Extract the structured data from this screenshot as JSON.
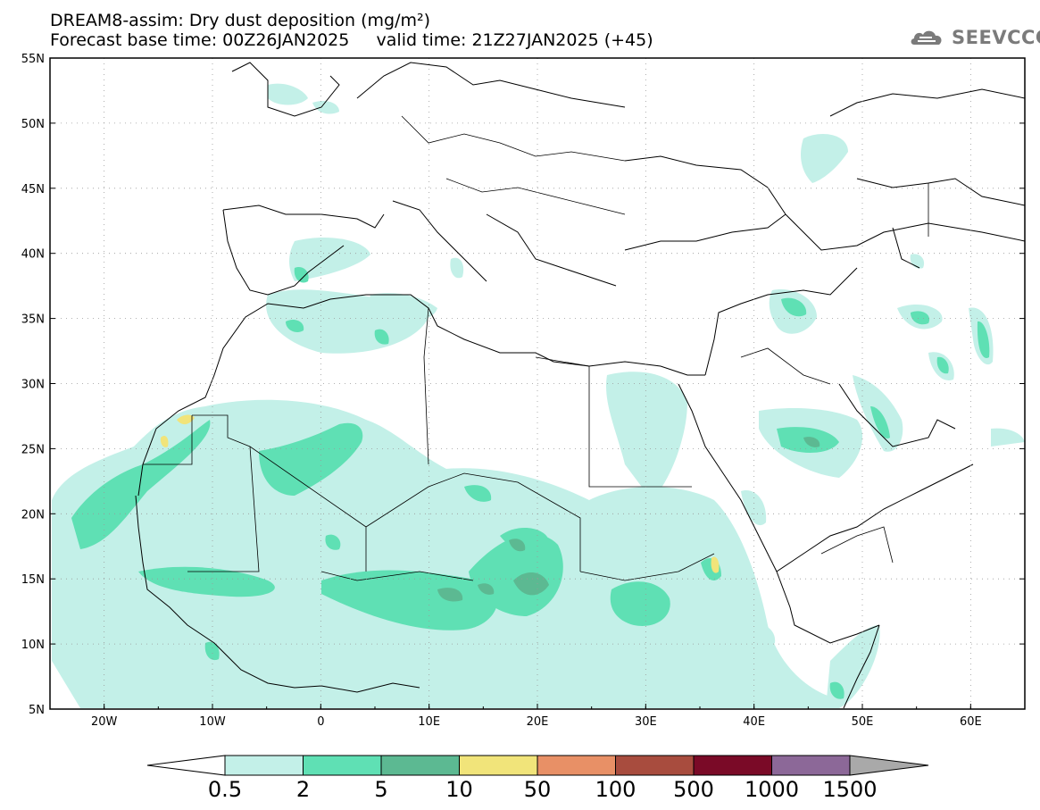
{
  "title": {
    "line1": "DREAM8-assim: Dry dust deposition (mg/m²)",
    "line2": "Forecast base time: 00Z26JAN2025     valid time: 21Z27JAN2025 (+45)"
  },
  "logo": {
    "text": "SEEVCCC",
    "icon": "cloud-icon"
  },
  "map": {
    "lon_range": [
      -25,
      65
    ],
    "lat_range": [
      5,
      55
    ],
    "lon_ticks": [
      {
        "value": -20,
        "label": "20W"
      },
      {
        "value": -10,
        "label": "10W"
      },
      {
        "value": 0,
        "label": "0"
      },
      {
        "value": 10,
        "label": "10E"
      },
      {
        "value": 20,
        "label": "20E"
      },
      {
        "value": 30,
        "label": "30E"
      },
      {
        "value": 40,
        "label": "40E"
      },
      {
        "value": 50,
        "label": "50E"
      },
      {
        "value": 60,
        "label": "60E"
      }
    ],
    "lat_ticks": [
      {
        "value": 55,
        "label": "55N"
      },
      {
        "value": 50,
        "label": "50N"
      },
      {
        "value": 45,
        "label": "45N"
      },
      {
        "value": 40,
        "label": "40N"
      },
      {
        "value": 35,
        "label": "35N"
      },
      {
        "value": 30,
        "label": "30N"
      },
      {
        "value": 25,
        "label": "25N"
      },
      {
        "value": 20,
        "label": "20N"
      },
      {
        "value": 15,
        "label": "15N"
      },
      {
        "value": 10,
        "label": "10N"
      },
      {
        "value": 5,
        "label": "5N"
      }
    ],
    "grid": true
  },
  "colorbar": {
    "thresholds": [
      "0.5",
      "2",
      "5",
      "10",
      "50",
      "100",
      "500",
      "1000",
      "1500"
    ],
    "colors": [
      "#c3f0e8",
      "#5fe0b4",
      "#5cb992",
      "#f1e47a",
      "#e89066",
      "#a84c3e",
      "#7a0a27",
      "#8c6898",
      "#a9a9a9"
    ],
    "under_color": "#ffffff"
  }
}
